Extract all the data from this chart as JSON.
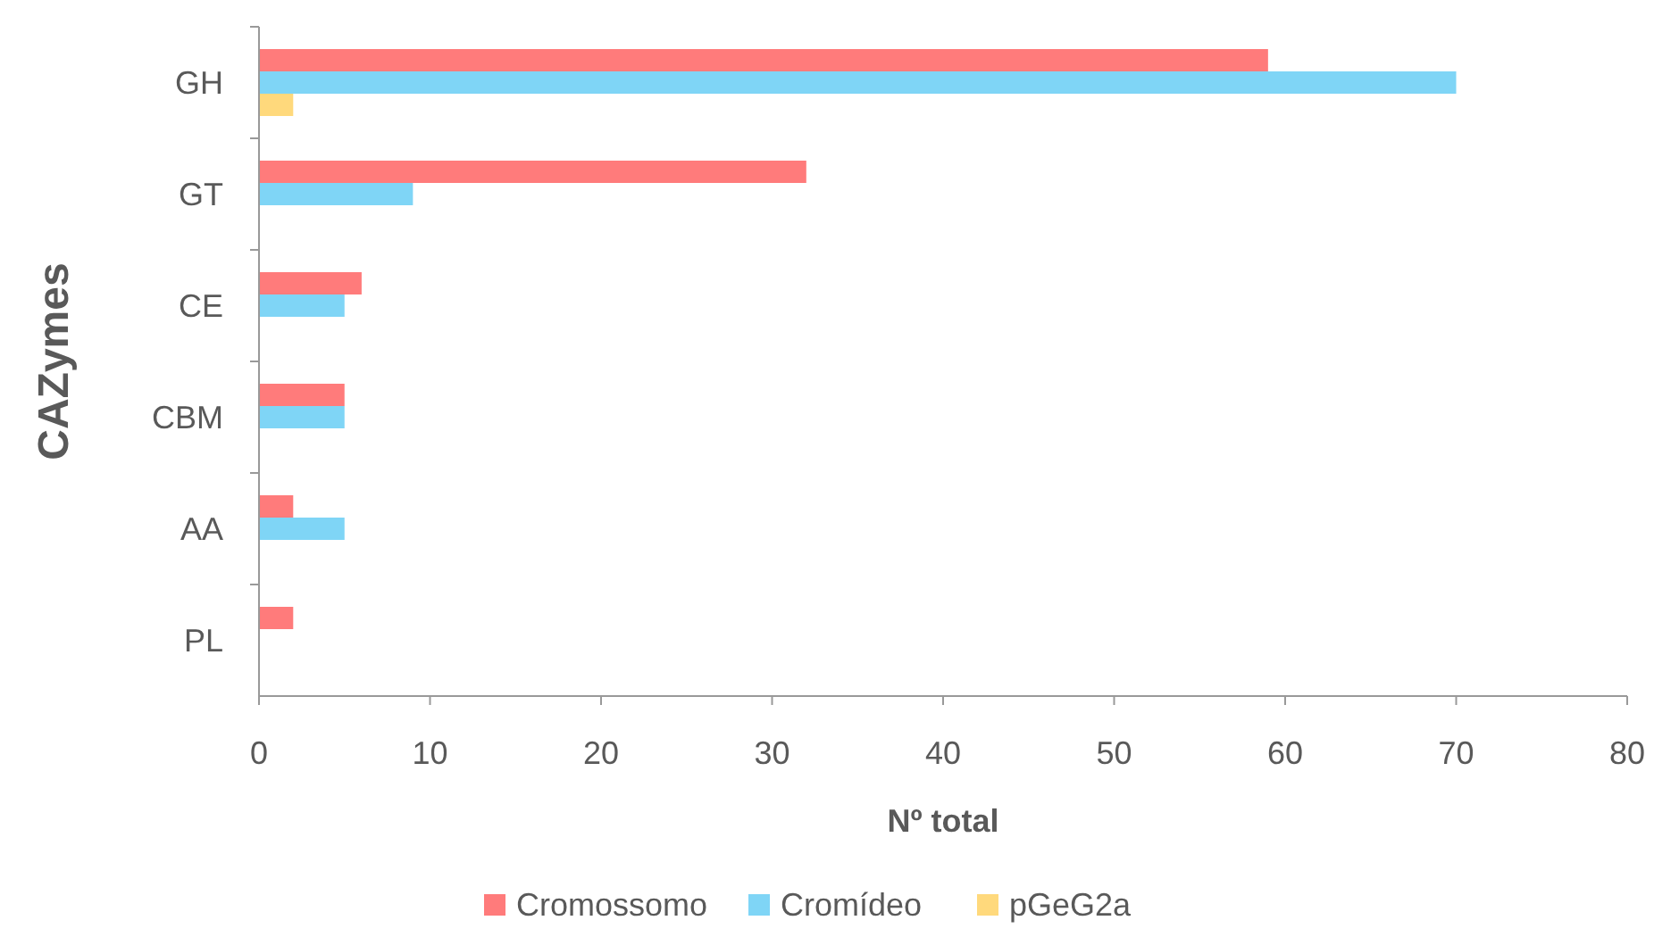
{
  "chart_data": {
    "type": "bar",
    "orientation": "horizontal",
    "xlabel": "Nº total",
    "ylabel": "CAZymes",
    "categories": [
      "GH",
      "GT",
      "CE",
      "CBM",
      "AA",
      "PL"
    ],
    "series": [
      {
        "name": "Cromossomo",
        "color": "#ff7b7b",
        "values": [
          59,
          32,
          6,
          5,
          2,
          2
        ]
      },
      {
        "name": "Cromídeo",
        "color": "#7fd5f6",
        "values": [
          70,
          9,
          5,
          5,
          5,
          null
        ]
      },
      {
        "name": "pGeG2a",
        "color": "#ffd97c",
        "values": [
          2,
          null,
          null,
          null,
          null,
          null
        ]
      }
    ],
    "xlim": [
      0,
      80
    ],
    "xticks": [
      0,
      10,
      20,
      30,
      40,
      50,
      60,
      70,
      80
    ],
    "grid": false,
    "legend": "bottom"
  }
}
